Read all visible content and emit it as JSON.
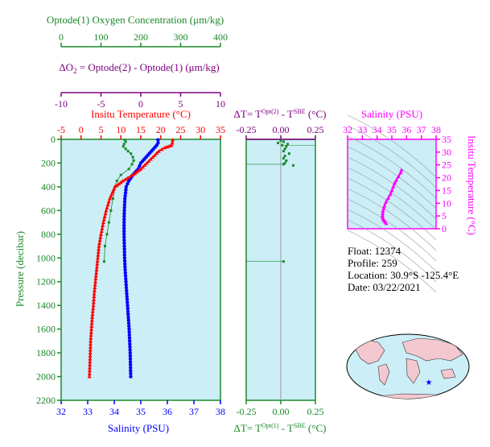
{
  "colors": {
    "oxygen": "#1a8a2a",
    "delta_o2": "#800080",
    "temperature": "#ff0000",
    "salinity": "#0000ff",
    "pressure": "#1a8a2a",
    "delta_t_top": "#800080",
    "delta_t_bottom": "#1a8a2a",
    "inset": "#ff00ff",
    "panel_bg": "#cceef7",
    "map_land": "#f4c8d0"
  },
  "axes": {
    "oxygen": {
      "title": "Optode(1) Oxygen Concentration (μm/kg)",
      "ticks": [
        "0",
        "100",
        "200",
        "300",
        "400"
      ]
    },
    "delta_o2": {
      "title_pre": "ΔO",
      "title_sub": "2",
      "title_post": " = Optode(2) - Optode(1)    (μm/kg)",
      "ticks": [
        "-10",
        "-5",
        "0",
        "5",
        "10"
      ]
    },
    "temperature": {
      "title": "Insitu Temperature (°C)",
      "ticks": [
        "-5",
        "0",
        "5",
        "10",
        "15",
        "20",
        "25",
        "30",
        "35"
      ]
    },
    "salinity": {
      "title": "Salinity (PSU)",
      "ticks": [
        "32",
        "33",
        "34",
        "35",
        "36",
        "37",
        "38"
      ]
    },
    "pressure": {
      "title": "Pressure (decibar)",
      "ticks": [
        "0",
        "200",
        "400",
        "600",
        "800",
        "1000",
        "1200",
        "1400",
        "1600",
        "1800",
        "2000",
        "2200"
      ]
    },
    "delta_t_top": {
      "title_pre": "ΔT= T",
      "sup1": "Opt(2)",
      "title_mid": " - T",
      "sup2": "SBE",
      "title_post": " (°C)",
      "ticks": [
        "-0.25",
        "0.00",
        "0.25"
      ]
    },
    "delta_t_bottom": {
      "title_pre": "ΔT= T",
      "sup1": "Opt(1)",
      "title_mid": " - T",
      "sup2": "SBE",
      "title_post": " (°C)",
      "ticks": [
        "-0.25",
        "0.00",
        "0.25"
      ]
    },
    "inset_salinity": {
      "title": "Salinity (PSU)",
      "ticks": [
        "32",
        "33",
        "34",
        "35",
        "36",
        "37",
        "38"
      ]
    },
    "inset_temperature": {
      "title": "Insitu Temperature (°C)",
      "ticks": [
        "0",
        "5",
        "10",
        "15",
        "20",
        "25",
        "30",
        "35"
      ]
    }
  },
  "info": {
    "float": "Float:  12374",
    "profile": "Profile:  259",
    "location": "Location:  30.9°S  -125.4°E",
    "date": "Date:  03/22/2021"
  },
  "chart_data": [
    {
      "type": "line",
      "name_key": "temperature_profile",
      "x_axis": "Insitu Temperature (°C)",
      "y_axis": "Pressure (decibar)",
      "xlim": [
        -5,
        35
      ],
      "ylim": [
        2200,
        0
      ],
      "points": [
        [
          23.0,
          5
        ],
        [
          22.9,
          30
        ],
        [
          22.7,
          50
        ],
        [
          21.0,
          70
        ],
        [
          19.5,
          100
        ],
        [
          18.0,
          150
        ],
        [
          16.5,
          200
        ],
        [
          15.0,
          250
        ],
        [
          13.0,
          300
        ],
        [
          10.5,
          350
        ],
        [
          8.5,
          400
        ],
        [
          7.2,
          500
        ],
        [
          6.3,
          600
        ],
        [
          5.6,
          700
        ],
        [
          5.0,
          800
        ],
        [
          4.5,
          900
        ],
        [
          4.2,
          1000
        ],
        [
          3.9,
          1100
        ],
        [
          3.6,
          1200
        ],
        [
          3.3,
          1300
        ],
        [
          3.1,
          1400
        ],
        [
          2.8,
          1500
        ],
        [
          2.6,
          1600
        ],
        [
          2.4,
          1700
        ],
        [
          2.3,
          1800
        ],
        [
          2.2,
          1900
        ],
        [
          2.1,
          2000
        ]
      ]
    },
    {
      "type": "line",
      "name_key": "salinity_profile",
      "x_axis": "Salinity (PSU)",
      "y_axis": "Pressure (decibar)",
      "xlim": [
        32,
        38
      ],
      "ylim": [
        2200,
        0
      ],
      "points": [
        [
          35.65,
          5
        ],
        [
          35.65,
          30
        ],
        [
          35.6,
          50
        ],
        [
          35.4,
          100
        ],
        [
          35.2,
          150
        ],
        [
          35.0,
          200
        ],
        [
          34.9,
          250
        ],
        [
          34.7,
          300
        ],
        [
          34.55,
          350
        ],
        [
          34.45,
          400
        ],
        [
          34.4,
          500
        ],
        [
          34.38,
          600
        ],
        [
          34.37,
          700
        ],
        [
          34.37,
          800
        ],
        [
          34.38,
          900
        ],
        [
          34.39,
          1000
        ],
        [
          34.41,
          1100
        ],
        [
          34.44,
          1200
        ],
        [
          34.47,
          1300
        ],
        [
          34.5,
          1400
        ],
        [
          34.53,
          1500
        ],
        [
          34.56,
          1600
        ],
        [
          34.58,
          1700
        ],
        [
          34.6,
          1800
        ],
        [
          34.61,
          1900
        ],
        [
          34.62,
          2000
        ]
      ]
    },
    {
      "type": "line",
      "name_key": "oxygen_profile",
      "x_axis": "Optode(1) Oxygen Concentration (μm/kg)",
      "y_axis": "Pressure (decibar)",
      "xlim": [
        0,
        400
      ],
      "ylim": [
        2200,
        0
      ],
      "points": [
        [
          160,
          5
        ],
        [
          162,
          20
        ],
        [
          158,
          40
        ],
        [
          156,
          60
        ],
        [
          162,
          80
        ],
        [
          168,
          100
        ],
        [
          175,
          120
        ],
        [
          180,
          150
        ],
        [
          182,
          180
        ],
        [
          178,
          210
        ],
        [
          170,
          250
        ],
        [
          150,
          300
        ],
        [
          140,
          350
        ],
        [
          135,
          400
        ],
        [
          130,
          500
        ],
        [
          125,
          600
        ],
        [
          120,
          700
        ],
        [
          115,
          800
        ],
        [
          110,
          900
        ],
        [
          108,
          1030
        ]
      ]
    },
    {
      "type": "scatter",
      "name_key": "delta_t_profile",
      "x_axis": "ΔT (°C)",
      "y_axis": "Pressure (decibar)",
      "xlim": [
        -0.25,
        0.25
      ],
      "ylim": [
        2200,
        0
      ],
      "points": [
        [
          0.0,
          10
        ],
        [
          0.02,
          20
        ],
        [
          -0.02,
          30
        ],
        [
          0.05,
          40
        ],
        [
          0.01,
          50
        ],
        [
          0.04,
          60
        ],
        [
          0.03,
          80
        ],
        [
          0.02,
          100
        ],
        [
          0.06,
          120
        ],
        [
          0.03,
          140
        ],
        [
          0.02,
          160
        ],
        [
          0.04,
          180
        ],
        [
          0.03,
          200
        ],
        [
          0.02,
          210
        ],
        [
          0.09,
          220
        ],
        [
          0.02,
          1030
        ]
      ],
      "guides": [
        {
          "y": 50,
          "x_from": 0.02,
          "x_to": 0.25
        },
        {
          "y": 210,
          "x_from": -0.25,
          "x_to": 0.02
        },
        {
          "y": 1030,
          "x_from": -0.25,
          "x_to": 0.02
        }
      ]
    },
    {
      "type": "scatter",
      "name_key": "ts_diagram",
      "x_axis": "Salinity (PSU)",
      "y_axis": "Insitu Temperature (°C)",
      "xlim": [
        32,
        38
      ],
      "ylim": [
        0,
        35
      ],
      "points": [
        [
          35.65,
          23.0
        ],
        [
          35.6,
          22.0
        ],
        [
          35.45,
          20.5
        ],
        [
          35.3,
          19.0
        ],
        [
          35.2,
          18.0
        ],
        [
          35.1,
          16.5
        ],
        [
          35.0,
          15.0
        ],
        [
          34.9,
          13.5
        ],
        [
          34.75,
          12.0
        ],
        [
          34.6,
          10.5
        ],
        [
          34.5,
          9.0
        ],
        [
          34.45,
          8.0
        ],
        [
          34.4,
          7.0
        ],
        [
          34.38,
          6.0
        ],
        [
          34.37,
          5.2
        ],
        [
          34.38,
          4.5
        ],
        [
          34.4,
          4.0
        ],
        [
          34.44,
          3.5
        ],
        [
          34.5,
          3.0
        ],
        [
          34.56,
          2.6
        ],
        [
          34.62,
          2.1
        ]
      ]
    }
  ]
}
